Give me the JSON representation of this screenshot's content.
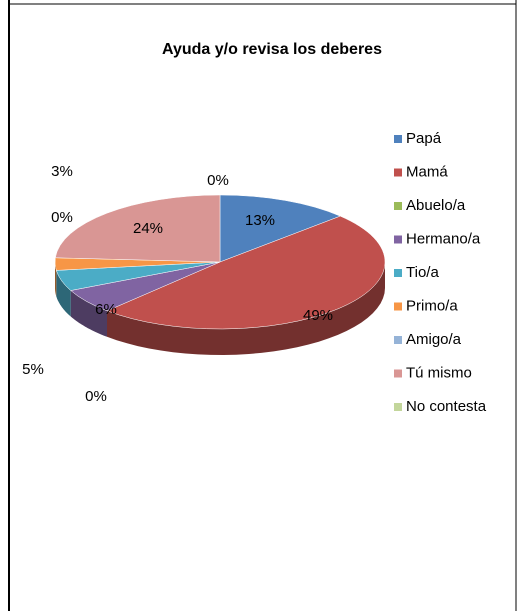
{
  "chart_data": {
    "type": "pie",
    "title": "Ayuda y/o revisa los deberes",
    "categories": [
      "Papá",
      "Mamá",
      "Abuelo/a",
      "Hermano/a",
      "Tio/a",
      "Primo/a",
      "Amigo/a",
      "Tú mismo",
      "No contesta"
    ],
    "values": [
      13,
      49,
      0,
      6,
      5,
      3,
      0,
      24,
      0
    ],
    "value_labels": [
      "13%",
      "49%",
      "0%",
      "6%",
      "5%",
      "3%",
      "0%",
      "24%",
      "0%"
    ],
    "colors": [
      "#4f81bd",
      "#c0504d",
      "#9bbb59",
      "#8064a2",
      "#4bacc6",
      "#f79646",
      "#95b3d7",
      "#d99694",
      "#c3d69b"
    ],
    "legend": "right"
  }
}
